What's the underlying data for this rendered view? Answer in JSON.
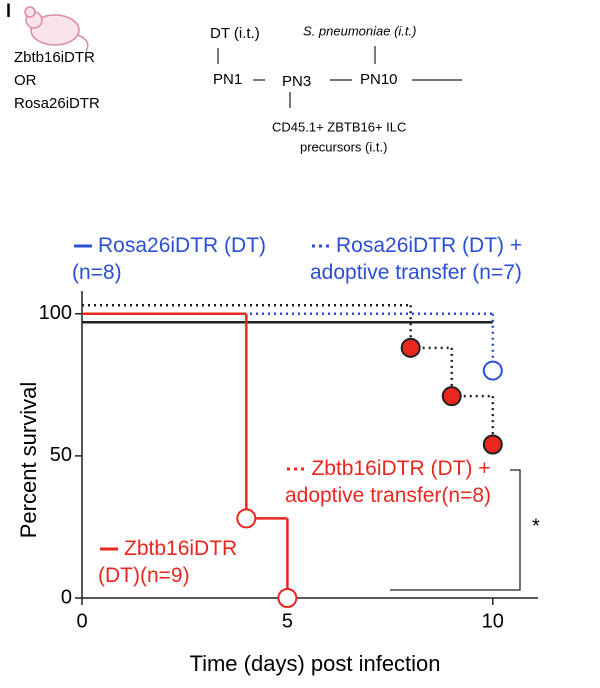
{
  "panel_label": "l",
  "schematic": {
    "mouse_lines": [
      "Zbtb16iDTR",
      "OR",
      "Rosa26iDTR"
    ],
    "dt": "DT (i.t.)",
    "pathogen": "S. pneumoniae (i.t.)",
    "timepoints": [
      "PN1",
      "PN3",
      "PN10"
    ],
    "transfer_lines": [
      "CD45.1+ ZBTB16+ ILC",
      "precursors (i.t.)"
    ]
  },
  "chart_data": {
    "type": "survival",
    "x_label": "Time (days) post infection",
    "y_label": "Percent survival",
    "xlim": [
      0,
      11.1
    ],
    "ylim": [
      0,
      108
    ],
    "xticks": [
      0,
      5,
      10
    ],
    "yticks": [
      0,
      50,
      100
    ],
    "series": [
      {
        "name": "Rosa26iDTR (DT) (n=8)",
        "color": "#2a4fd6",
        "line_color": "#222222",
        "dashed": false,
        "markers": "none",
        "x": [
          0,
          10
        ],
        "values": [
          97,
          97
        ]
      },
      {
        "name": "Rosa26iDTR (DT) + adoptive transfer (n=7)",
        "color": "#2a4fd6",
        "line_color": "#2a4fd6",
        "dashed": true,
        "markers": "open",
        "x": [
          0,
          10
        ],
        "values": [
          100,
          80
        ]
      },
      {
        "name": "Zbtb16iDTR (DT) + adoptive transfer(n=8)",
        "color": "#e8281e",
        "line_color": "#222222",
        "dashed": true,
        "markers": "filled",
        "x": [
          0,
          8,
          9,
          10
        ],
        "values": [
          103,
          88,
          71,
          54
        ]
      },
      {
        "name": "Zbtb16iDTR (DT)(n=9)",
        "color": "#e8281e",
        "line_color": "#e8281e",
        "dashed": false,
        "markers": "open",
        "x": [
          0,
          4,
          5
        ],
        "values": [
          100,
          28,
          0
        ]
      }
    ],
    "annotation": "*"
  }
}
